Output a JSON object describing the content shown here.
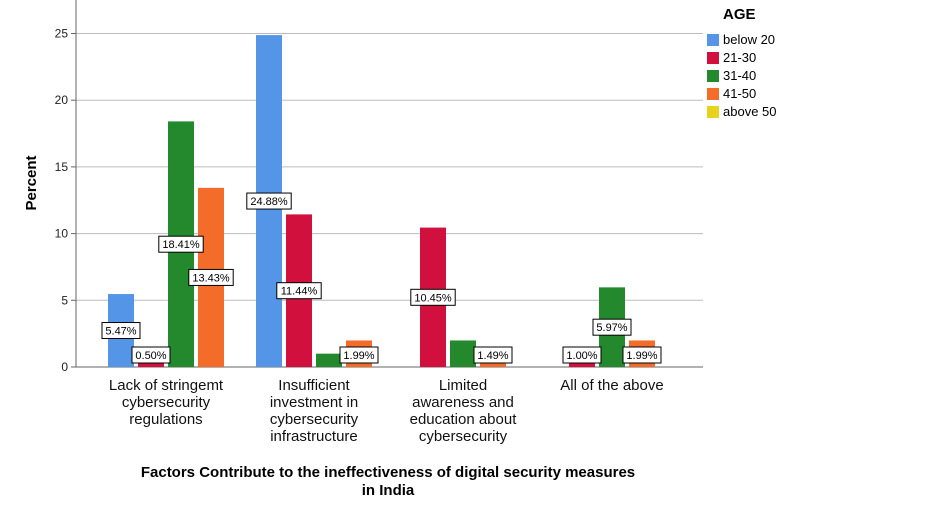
{
  "chart_data": {
    "type": "bar",
    "xlabel": [
      "Factors Contribute to the ineffectiveness of digital security measures",
      "in India"
    ],
    "ylabel": "Percent",
    "ylim": [
      0,
      27
    ],
    "yticks": [
      0,
      5,
      10,
      15,
      20,
      25
    ],
    "grid": true,
    "legend_title": "AGE",
    "legend_placement": "top-right",
    "categories": [
      [
        "Lack of stringemt",
        "cybersecurity",
        "regulations"
      ],
      [
        "Insufficient",
        "investment in",
        "cybersecurity",
        "infrastructure"
      ],
      [
        "Limited",
        "awareness and",
        "education about",
        "cybersecurity"
      ],
      [
        "All of the above"
      ]
    ],
    "series": [
      {
        "name": "below 20",
        "color": "#5595e8",
        "values": [
          5.47,
          24.88,
          null,
          null
        ],
        "labels": [
          "5.47%",
          "24.88%",
          "",
          ""
        ]
      },
      {
        "name": "21-30",
        "color": "#d2103e",
        "values": [
          0.5,
          11.44,
          10.45,
          1.0
        ],
        "labels": [
          "0.50%",
          "11.44%",
          "10.45%",
          "1.00%"
        ]
      },
      {
        "name": "31-40",
        "color": "#24882c",
        "values": [
          18.41,
          1.0,
          1.99,
          5.97
        ],
        "labels": [
          "18.41%",
          "",
          "",
          "5.97%"
        ]
      },
      {
        "name": "41-50",
        "color": "#f46c2a",
        "values": [
          13.43,
          1.99,
          1.49,
          1.99
        ],
        "labels": [
          "13.43%",
          "1.99%",
          "1.49%",
          "1.99%"
        ]
      },
      {
        "name": "above 50",
        "color": "#e8d31c",
        "values": [
          null,
          null,
          null,
          null
        ],
        "labels": [
          "",
          "",
          "",
          ""
        ]
      }
    ]
  }
}
